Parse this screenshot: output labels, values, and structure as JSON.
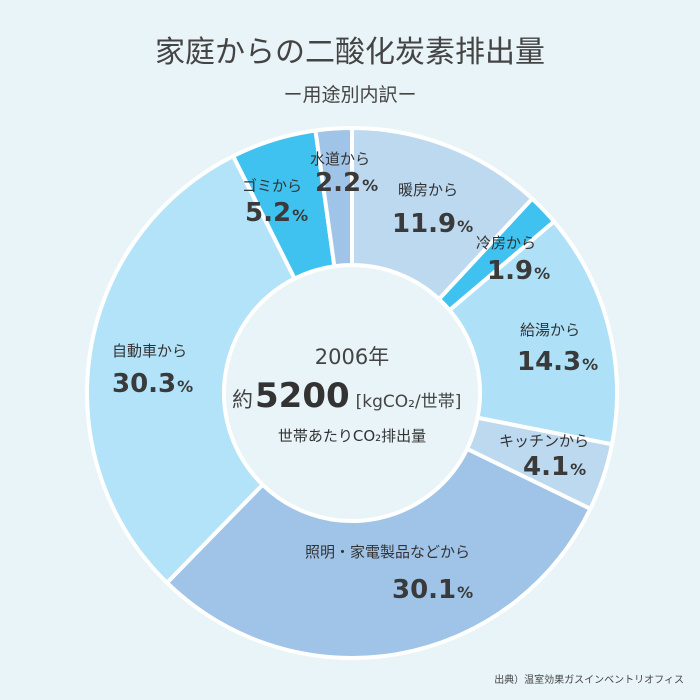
{
  "chart_data": {
    "type": "pie",
    "title": "家庭からの二酸化炭素排出量",
    "subtitle": "ー用途別内訳ー",
    "center": {
      "year": "2006年",
      "prefix": "約",
      "value": "5200",
      "unit": "[kgCO₂/世帯]",
      "caption": "世帯あたりCO₂排出量"
    },
    "source": "出典）温室効果ガスインベントリオフィス",
    "slices": [
      {
        "label": "暖房から",
        "value": 11.9,
        "color": "#bcd9f0"
      },
      {
        "label": "冷房から",
        "value": 1.9,
        "color": "#3fc2ef"
      },
      {
        "label": "給湯から",
        "value": 14.3,
        "color": "#aee1f7"
      },
      {
        "label": "キッチンから",
        "value": 4.1,
        "color": "#bcd9f0"
      },
      {
        "label": "照明・家電製品などから",
        "value": 30.1,
        "color": "#a0c4e8"
      },
      {
        "label": "自動車から",
        "value": 30.3,
        "color": "#b3e3f8"
      },
      {
        "label": "ゴミから",
        "value": 5.2,
        "color": "#3fc2ef"
      },
      {
        "label": "水道から",
        "value": 2.2,
        "color": "#a0c4e8"
      }
    ]
  }
}
